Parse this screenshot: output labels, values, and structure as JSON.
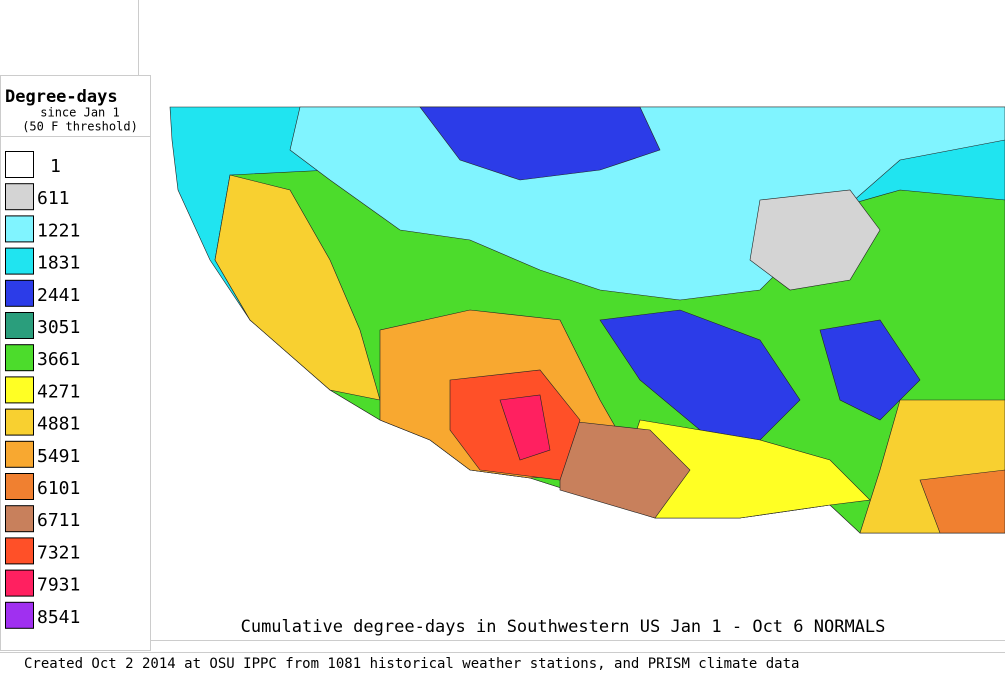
{
  "legend": {
    "title": "Degree-days",
    "subtitle": "since Jan 1",
    "note": "(50 F threshold)",
    "items": [
      {
        "value": 1,
        "color": "#ffffff"
      },
      {
        "value": 611,
        "color": "#d4d4d4"
      },
      {
        "value": 1221,
        "color": "#80f4ff"
      },
      {
        "value": 1831,
        "color": "#20e4f0"
      },
      {
        "value": 2441,
        "color": "#2c3ce8"
      },
      {
        "value": 3051,
        "color": "#2a9e7c"
      },
      {
        "value": 3661,
        "color": "#4cdc2c"
      },
      {
        "value": 4271,
        "color": "#ffff24"
      },
      {
        "value": 4881,
        "color": "#f8d030"
      },
      {
        "value": 5491,
        "color": "#f8a830"
      },
      {
        "value": 6101,
        "color": "#f08030"
      },
      {
        "value": 6711,
        "color": "#c8805c"
      },
      {
        "value": 7321,
        "color": "#ff5028"
      },
      {
        "value": 7931,
        "color": "#ff2060"
      },
      {
        "value": 8541,
        "color": "#a030f0"
      }
    ]
  },
  "map_title": "Cumulative degree-days in Southwestern US Jan 1 - Oct 6 NORMALS",
  "footer": "Created Oct 2 2014 at OSU IPPC from 1081 historical weather stations, and PRISM climate data"
}
